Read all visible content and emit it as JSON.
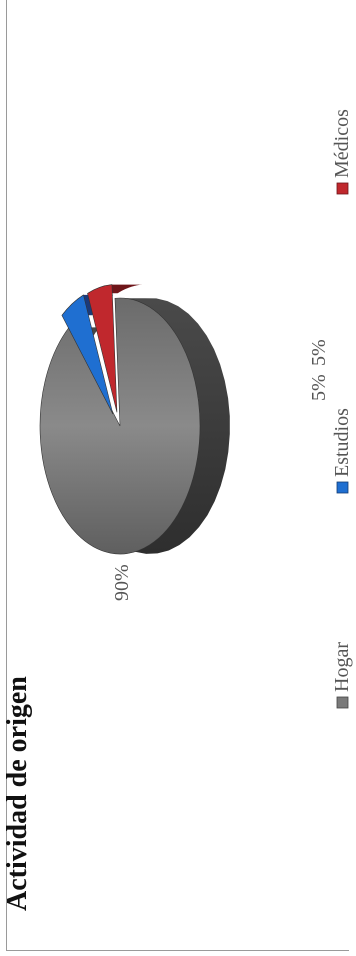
{
  "chart_data": {
    "type": "pie",
    "title": "Actividad de origen",
    "categories": [
      "Hogar",
      "Estudios",
      "Médicos"
    ],
    "values": [
      90,
      5,
      5
    ],
    "value_labels": [
      "90%",
      "5%",
      "5%"
    ],
    "colors": [
      "#7a7a7a",
      "#1f6fd1",
      "#c0282d"
    ],
    "legend_position": "bottom"
  }
}
